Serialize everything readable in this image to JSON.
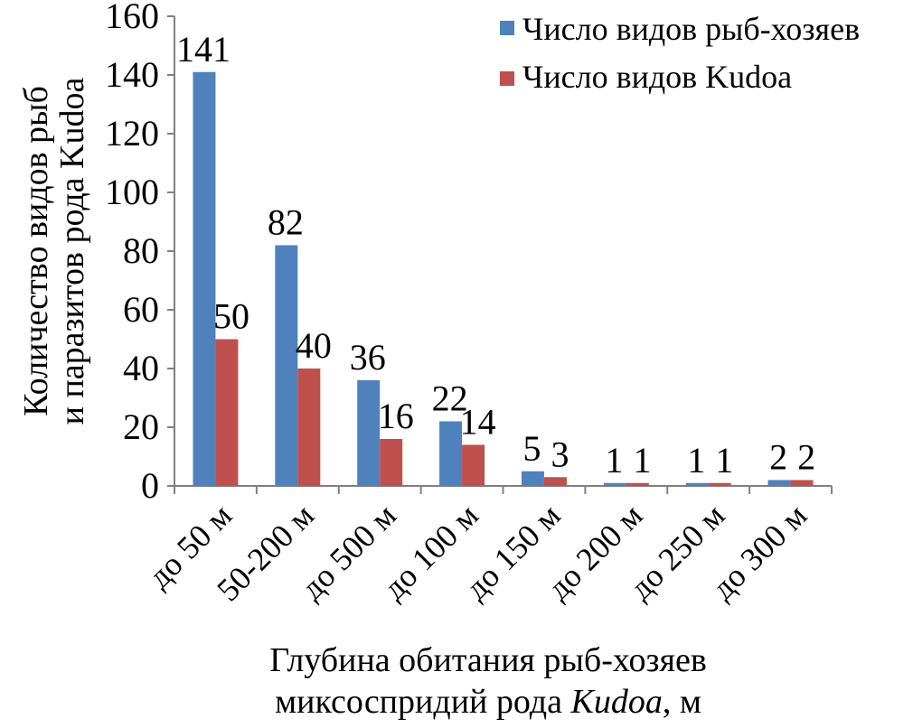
{
  "chart_data": {
    "type": "bar",
    "categories": [
      "до 50 м",
      "50-200 м",
      "до 500 м",
      "до 100 м",
      "до 150 м",
      "до 200 м",
      "до 250 м",
      "до 300 м"
    ],
    "series": [
      {
        "name": "Число видов рыб-хозяев",
        "values": [
          141,
          82,
          36,
          22,
          5,
          1,
          1,
          2
        ],
        "color": "#4F81BD"
      },
      {
        "name": "Число видов Kudoa",
        "values": [
          50,
          40,
          16,
          14,
          3,
          1,
          1,
          2
        ],
        "color": "#C0504D"
      }
    ],
    "ylabel_line1": "Количество видов рыб",
    "ylabel_line2": "и паразитов рода  Kudoa",
    "xlabel_line1": "Глубина обитания рыб-хозяев",
    "xlabel_line2_prefix": "миксоспридий рода ",
    "xlabel_line2_italic": "Kudoa",
    "xlabel_line2_suffix": ", м",
    "ylim": [
      0,
      160
    ],
    "yticks": [
      0,
      20,
      40,
      60,
      80,
      100,
      120,
      140,
      160
    ],
    "grid": false,
    "legend_position": "top-right"
  }
}
